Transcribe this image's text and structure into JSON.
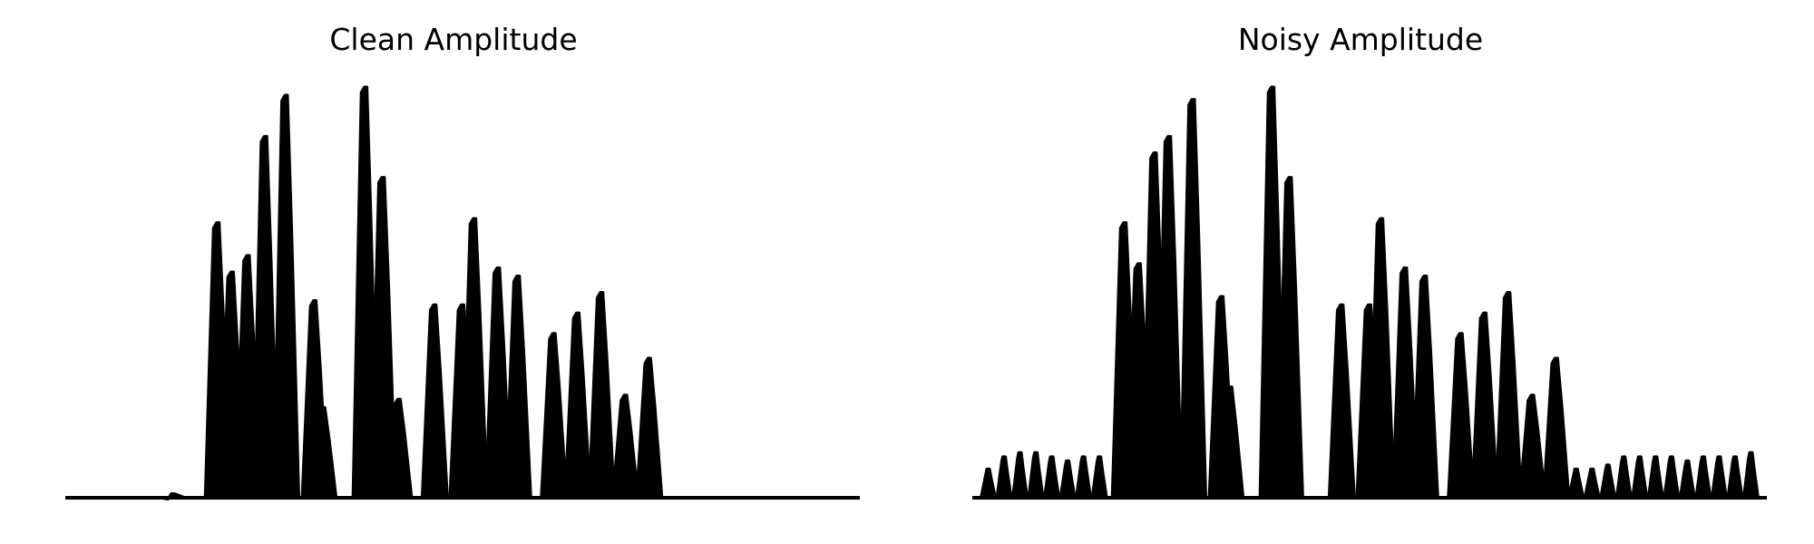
{
  "chart_data": [
    {
      "type": "area",
      "title": "Clean Amplitude",
      "xlabel": "",
      "ylabel": "",
      "axes_visible": false,
      "grid": false,
      "legend": "none",
      "color": "#000000",
      "ylim": [
        0,
        1
      ],
      "peaks": [
        {
          "x": 0.135,
          "y": 0.01
        },
        {
          "x": 0.192,
          "y": 0.67
        },
        {
          "x": 0.21,
          "y": 0.55
        },
        {
          "x": 0.23,
          "y": 0.59
        },
        {
          "x": 0.252,
          "y": 0.88
        },
        {
          "x": 0.278,
          "y": 0.98
        },
        {
          "x": 0.314,
          "y": 0.48
        },
        {
          "x": 0.325,
          "y": 0.22
        },
        {
          "x": 0.378,
          "y": 1.0
        },
        {
          "x": 0.4,
          "y": 0.78
        },
        {
          "x": 0.42,
          "y": 0.24
        },
        {
          "x": 0.465,
          "y": 0.47
        },
        {
          "x": 0.5,
          "y": 0.47
        },
        {
          "x": 0.515,
          "y": 0.68
        },
        {
          "x": 0.545,
          "y": 0.56
        },
        {
          "x": 0.57,
          "y": 0.54
        },
        {
          "x": 0.615,
          "y": 0.4
        },
        {
          "x": 0.645,
          "y": 0.45
        },
        {
          "x": 0.675,
          "y": 0.5
        },
        {
          "x": 0.705,
          "y": 0.25
        },
        {
          "x": 0.735,
          "y": 0.34
        }
      ]
    },
    {
      "type": "area",
      "title": "Noisy Amplitude",
      "xlabel": "",
      "ylabel": "",
      "axes_visible": false,
      "grid": false,
      "legend": "none",
      "color": "#000000",
      "ylim": [
        0,
        1
      ],
      "noise_floor": [
        {
          "x": 0.02,
          "y": 0.07
        },
        {
          "x": 0.04,
          "y": 0.1
        },
        {
          "x": 0.06,
          "y": 0.11
        },
        {
          "x": 0.08,
          "y": 0.11
        },
        {
          "x": 0.1,
          "y": 0.1
        },
        {
          "x": 0.12,
          "y": 0.09
        },
        {
          "x": 0.14,
          "y": 0.1
        },
        {
          "x": 0.16,
          "y": 0.1
        },
        {
          "x": 0.76,
          "y": 0.07
        },
        {
          "x": 0.78,
          "y": 0.07
        },
        {
          "x": 0.8,
          "y": 0.08
        },
        {
          "x": 0.82,
          "y": 0.1
        },
        {
          "x": 0.84,
          "y": 0.1
        },
        {
          "x": 0.86,
          "y": 0.1
        },
        {
          "x": 0.88,
          "y": 0.1
        },
        {
          "x": 0.9,
          "y": 0.09
        },
        {
          "x": 0.92,
          "y": 0.1
        },
        {
          "x": 0.94,
          "y": 0.1
        },
        {
          "x": 0.96,
          "y": 0.1
        },
        {
          "x": 0.98,
          "y": 0.11
        }
      ],
      "peaks": [
        {
          "x": 0.192,
          "y": 0.67
        },
        {
          "x": 0.21,
          "y": 0.57
        },
        {
          "x": 0.23,
          "y": 0.84
        },
        {
          "x": 0.248,
          "y": 0.88
        },
        {
          "x": 0.278,
          "y": 0.97
        },
        {
          "x": 0.314,
          "y": 0.49
        },
        {
          "x": 0.325,
          "y": 0.27
        },
        {
          "x": 0.378,
          "y": 1.0
        },
        {
          "x": 0.4,
          "y": 0.78
        },
        {
          "x": 0.465,
          "y": 0.47
        },
        {
          "x": 0.5,
          "y": 0.47
        },
        {
          "x": 0.515,
          "y": 0.68
        },
        {
          "x": 0.545,
          "y": 0.56
        },
        {
          "x": 0.57,
          "y": 0.54
        },
        {
          "x": 0.615,
          "y": 0.4
        },
        {
          "x": 0.645,
          "y": 0.45
        },
        {
          "x": 0.675,
          "y": 0.5
        },
        {
          "x": 0.705,
          "y": 0.25
        },
        {
          "x": 0.735,
          "y": 0.34
        }
      ]
    }
  ]
}
